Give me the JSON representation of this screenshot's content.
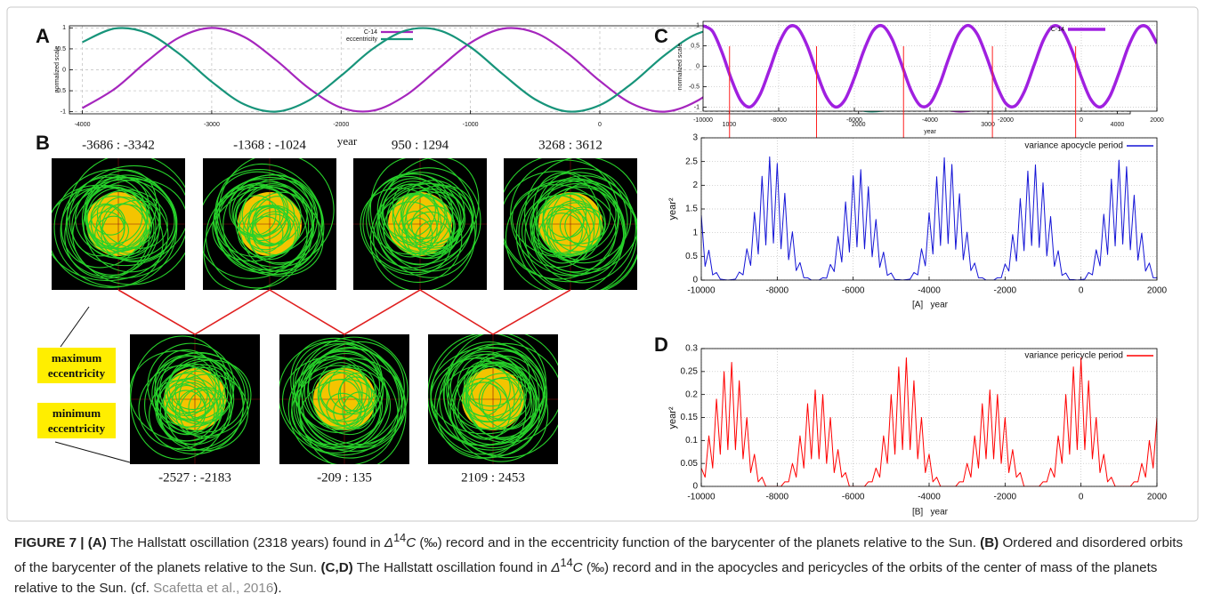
{
  "chart_data": [
    {
      "type": "line",
      "panel": "A",
      "ylabel": "normalized scale",
      "xlabel": "year",
      "xlim": [
        -4100,
        4100
      ],
      "ylim": [
        -1.05,
        1.05
      ],
      "xticks": [
        -4000,
        -3000,
        -2000,
        -1000,
        0,
        1000,
        2000,
        3000,
        4000
      ],
      "yticks": [
        -1,
        -0.5,
        0,
        0.5,
        1
      ],
      "grid": true,
      "x": [
        -4000,
        -3750,
        -3500,
        -3250,
        -3000,
        -2750,
        -2500,
        -2250,
        -2000,
        -1750,
        -1500,
        -1250,
        -1000,
        -750,
        -500,
        -250,
        0,
        250,
        500,
        750,
        1000,
        1250,
        1500,
        1750,
        2000,
        2250,
        2500,
        2750,
        3000,
        3250,
        3500,
        3750,
        4000
      ],
      "series": [
        {
          "name": "C-14",
          "color": "#a526bd",
          "values": [
            -0.913,
            -0.455,
            0.204,
            0.773,
            1,
            0.785,
            0.224,
            -0.437,
            -0.904,
            -0.972,
            -0.61,
            0.021,
            0.644,
            0.981,
            0.885,
            0.398,
            -0.265,
            -0.811,
            -0.999,
            -0.745,
            -0.162,
            0.493,
            0.93,
            0.955,
            0.559,
            -0.085,
            -0.691,
            -0.991,
            -0.854,
            -0.339,
            0.326,
            0.847,
            0.993
          ]
        },
        {
          "name": "eccentricity",
          "color": "#17947a",
          "values": [
            0.659,
            0.985,
            0.876,
            0.379,
            -0.285,
            -0.823,
            -0.997,
            -0.731,
            -0.141,
            0.511,
            0.937,
            0.949,
            0.542,
            -0.105,
            -0.705,
            -0.994,
            -0.843,
            -0.32,
            0.345,
            0.857,
            0.991,
            0.686,
            0.079,
            -0.564,
            -0.957,
            -0.927,
            -0.488,
            0.167,
            0.749,
            0.999,
            0.808,
            0.259,
            -0.403
          ]
        }
      ]
    },
    {
      "type": "line",
      "panel": "C",
      "ylabel": "normalized scale",
      "xlabel": "year",
      "xlim": [
        -10000,
        2000
      ],
      "ylim": [
        -1.1,
        1.1
      ],
      "xticks": [
        -10000,
        -8000,
        -6000,
        -4000,
        -2000,
        0,
        2000
      ],
      "yticks": [
        -1,
        -0.5,
        0,
        0.5,
        1
      ],
      "grid": true,
      "vlines": [
        -9300,
        -7000,
        -4700,
        -2350,
        -150
      ],
      "vline_color": "#ff2020",
      "x": [
        -10000,
        -9750,
        -9500,
        -9250,
        -9000,
        -8750,
        -8500,
        -8250,
        -8000,
        -7750,
        -7500,
        -7250,
        -7000,
        -6750,
        -6500,
        -6250,
        -6000,
        -5750,
        -5500,
        -5250,
        -5000,
        -4750,
        -4500,
        -4250,
        -4000,
        -3750,
        -3500,
        -3250,
        -3000,
        -2750,
        -2500,
        -2250,
        -2000,
        -1750,
        -1500,
        -1250,
        -1000,
        -750,
        -500,
        -250,
        0,
        250,
        500,
        750,
        1000,
        1250,
        1500,
        1750,
        2000
      ],
      "series": [
        {
          "name": "C-14",
          "color": "#a020e0",
          "values": [
            0.991,
            0.857,
            0.344,
            -0.321,
            -0.844,
            -0.994,
            -0.705,
            -0.104,
            0.543,
            0.949,
            0.936,
            0.51,
            -0.142,
            -0.732,
            -0.997,
            -0.822,
            -0.284,
            0.38,
            0.876,
            0.985,
            0.658,
            0.041,
            -0.595,
            -0.967,
            -0.912,
            -0.454,
            0.205,
            0.773,
            1,
            0.785,
            0.223,
            -0.438,
            -0.905,
            -0.972,
            -0.609,
            0.022,
            0.644,
            0.981,
            0.885,
            0.397,
            -0.266,
            -0.811,
            -0.999,
            -0.744,
            -0.161,
            0.494,
            0.93,
            0.955,
            0.558
          ]
        }
      ]
    },
    {
      "type": "line",
      "ylabel": "year²",
      "xlabel": "[A]   year",
      "xlim": [
        -10000,
        2000
      ],
      "ylim": [
        0,
        3
      ],
      "xticks": [
        -10000,
        -8000,
        -6000,
        -4000,
        -2000,
        0,
        2000
      ],
      "yticks": [
        0,
        0.5,
        1,
        1.5,
        2,
        2.5,
        3
      ],
      "grid": true,
      "x": [
        -10000,
        -9900,
        -9800,
        -9700,
        -9600,
        -9500,
        -9400,
        -9300,
        -9200,
        -9100,
        -9000,
        -8900,
        -8800,
        -8700,
        -8600,
        -8500,
        -8400,
        -8300,
        -8200,
        -8100,
        -8000,
        -7900,
        -7800,
        -7700,
        -7600,
        -7500,
        -7400,
        -7300,
        -7200,
        -7100,
        -7000,
        -6900,
        -6800,
        -6700,
        -6600,
        -6500,
        -6400,
        -6300,
        -6200,
        -6100,
        -6000,
        -5900,
        -5800,
        -5700,
        -5600,
        -5500,
        -5400,
        -5300,
        -5200,
        -5100,
        -5000,
        -4900,
        -4800,
        -4700,
        -4600,
        -4500,
        -4400,
        -4300,
        -4200,
        -4100,
        -4000,
        -3900,
        -3800,
        -3700,
        -3600,
        -3500,
        -3400,
        -3300,
        -3200,
        -3100,
        -3000,
        -2900,
        -2800,
        -2700,
        -2600,
        -2500,
        -2400,
        -2300,
        -2200,
        -2100,
        -2000,
        -1900,
        -1800,
        -1700,
        -1600,
        -1500,
        -1400,
        -1300,
        -1200,
        -1100,
        -1000,
        -900,
        -800,
        -700,
        -600,
        -500,
        -400,
        -300,
        -200,
        -100,
        0,
        100,
        200,
        300,
        400,
        500,
        600,
        700,
        800,
        900,
        1000,
        1100,
        1200,
        1300,
        1400,
        1500,
        1600,
        1700,
        1800,
        1900,
        2000
      ],
      "series": [
        {
          "name": "variance apocycle period",
          "color": "#1414d6",
          "values": [
            1.37,
            0.29,
            0.63,
            0.11,
            0.16,
            0.02,
            0.01,
            0,
            0.01,
            0.02,
            0.17,
            0.11,
            0.66,
            0.31,
            1.43,
            0.55,
            2.19,
            0.74,
            2.6,
            0.78,
            2.46,
            0.66,
            1.83,
            0.43,
            1.02,
            0.2,
            0.37,
            0.05,
            0.05,
            0,
            0,
            0,
            0.05,
            0.04,
            0.33,
            0.18,
            0.92,
            0.38,
            1.65,
            0.59,
            2.2,
            0.7,
            2.33,
            0.66,
            1.97,
            0.49,
            1.28,
            0.27,
            0.59,
            0.1,
            0.15,
            0.01,
            0.01,
            0,
            0.01,
            0.02,
            0.16,
            0.11,
            0.66,
            0.3,
            1.42,
            0.55,
            2.18,
            0.73,
            2.58,
            0.77,
            2.44,
            0.65,
            1.82,
            0.43,
            1.01,
            0.2,
            0.36,
            0.05,
            0.05,
            0,
            0,
            0,
            0.05,
            0.05,
            0.34,
            0.19,
            0.96,
            0.4,
            1.72,
            0.62,
            2.3,
            0.73,
            2.43,
            0.69,
            2.05,
            0.51,
            1.34,
            0.29,
            0.62,
            0.1,
            0.15,
            0.01,
            0.01,
            0,
            0.01,
            0.02,
            0.16,
            0.11,
            0.64,
            0.3,
            1.39,
            0.54,
            2.13,
            0.72,
            2.53,
            0.76,
            2.39,
            0.64,
            1.79,
            0.42,
            0.99,
            0.19,
            0.36,
            0.05,
            0.05
          ]
        }
      ]
    },
    {
      "type": "line",
      "panel": "D",
      "ylabel": "year²",
      "xlabel": "[B]   year",
      "xlim": [
        -10000,
        2000
      ],
      "ylim": [
        0,
        0.3
      ],
      "xticks": [
        -10000,
        -8000,
        -6000,
        -4000,
        -2000,
        0,
        2000
      ],
      "yticks": [
        0,
        0.05,
        0.1,
        0.15,
        0.2,
        0.25,
        0.3
      ],
      "grid": true,
      "x": [
        -10000,
        -9900,
        -9800,
        -9700,
        -9600,
        -9500,
        -9400,
        -9300,
        -9200,
        -9100,
        -9000,
        -8900,
        -8800,
        -8700,
        -8600,
        -8500,
        -8400,
        -8300,
        -8200,
        -8100,
        -8000,
        -7900,
        -7800,
        -7700,
        -7600,
        -7500,
        -7400,
        -7300,
        -7200,
        -7100,
        -7000,
        -6900,
        -6800,
        -6700,
        -6600,
        -6500,
        -6400,
        -6300,
        -6200,
        -6100,
        -6000,
        -5900,
        -5800,
        -5700,
        -5600,
        -5500,
        -5400,
        -5300,
        -5200,
        -5100,
        -5000,
        -4900,
        -4800,
        -4700,
        -4600,
        -4500,
        -4400,
        -4300,
        -4200,
        -4100,
        -4000,
        -3900,
        -3800,
        -3700,
        -3600,
        -3500,
        -3400,
        -3300,
        -3200,
        -3100,
        -3000,
        -2900,
        -2800,
        -2700,
        -2600,
        -2500,
        -2400,
        -2300,
        -2200,
        -2100,
        -2000,
        -1900,
        -1800,
        -1700,
        -1600,
        -1500,
        -1400,
        -1300,
        -1200,
        -1100,
        -1000,
        -900,
        -800,
        -700,
        -600,
        -500,
        -400,
        -300,
        -200,
        -100,
        0,
        100,
        200,
        300,
        400,
        500,
        600,
        700,
        800,
        900,
        1000,
        1100,
        1200,
        1300,
        1400,
        1500,
        1600,
        1700,
        1800,
        1900,
        2000
      ],
      "series": [
        {
          "name": "variance pericycle period",
          "color": "#ff0000",
          "values": [
            0.04,
            0.02,
            0.11,
            0.04,
            0.19,
            0.07,
            0.25,
            0.08,
            0.27,
            0.08,
            0.23,
            0.06,
            0.15,
            0.03,
            0.07,
            0.01,
            0.02,
            0,
            0,
            0,
            0,
            0,
            0.01,
            0.01,
            0.05,
            0.02,
            0.11,
            0.04,
            0.18,
            0.06,
            0.21,
            0.06,
            0.2,
            0.05,
            0.15,
            0.03,
            0.08,
            0.02,
            0.03,
            0,
            0,
            0,
            0,
            0,
            0.01,
            0.01,
            0.04,
            0.02,
            0.11,
            0.05,
            0.2,
            0.07,
            0.26,
            0.08,
            0.28,
            0.08,
            0.23,
            0.06,
            0.15,
            0.03,
            0.07,
            0.01,
            0.02,
            0,
            0,
            0,
            0,
            0,
            0.01,
            0.01,
            0.05,
            0.02,
            0.11,
            0.04,
            0.18,
            0.06,
            0.21,
            0.06,
            0.2,
            0.05,
            0.15,
            0.03,
            0.08,
            0.02,
            0.03,
            0,
            0,
            0,
            0,
            0,
            0.01,
            0.01,
            0.04,
            0.02,
            0.11,
            0.05,
            0.2,
            0.07,
            0.26,
            0.08,
            0.28,
            0.08,
            0.23,
            0.06,
            0.15,
            0.03,
            0.07,
            0.01,
            0.02,
            0,
            0,
            0,
            0,
            0,
            0.01,
            0.01,
            0.05,
            0.02,
            0.1,
            0.04,
            0.15
          ]
        }
      ]
    }
  ],
  "panel_b": {
    "label": "B",
    "top": [
      "-3686 : -3342",
      "-1368 : -1024",
      "950 : 1294",
      "3268 : 3612"
    ],
    "bottom": [
      "-2527 : -2183",
      "-209 : 135",
      "2109 : 2453"
    ],
    "maximum": "maximum eccentricity",
    "minimum": "minimum eccentricity"
  },
  "caption": {
    "parts": [
      "FIGURE 7 | (A)",
      " The Hallstatt oscillation (2318 years) found in ",
      "Δ",
      "14",
      "C",
      " (‰) record and in the eccentricity function of the barycenter of the planets relative to the Sun. ",
      "(B)",
      " Ordered and disordered orbits of the barycenter of the planets relative to the Sun. ",
      "(C,D)",
      " The Hallstatt oscillation found in ",
      "Δ",
      "14",
      "C",
      " (‰) record and in the apocycles and pericycles of the orbits of the center of mass of the planets relative to the Sun. (cf. ",
      "Scafetta et al., 2016",
      ")."
    ]
  }
}
